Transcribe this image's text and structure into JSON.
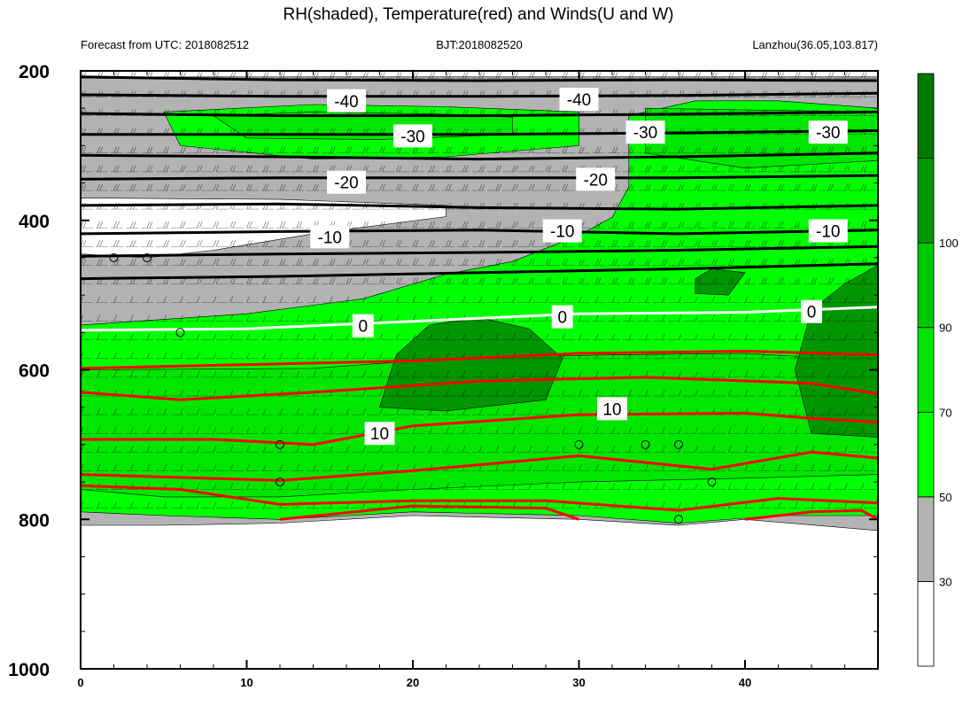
{
  "chart_data": {
    "type": "heatmap",
    "title": "RH(shaded), Temperature(red) and Winds(U and W)",
    "left_subtitle": "Forecast from UTC: 2018082512",
    "center_subtitle": "BJT:2018082520",
    "right_subtitle": "Lanzhou(36.05,103.817)",
    "x_range": [
      0,
      48
    ],
    "x_ticks": [
      0,
      10,
      20,
      30,
      40
    ],
    "y_range": [
      1000,
      200
    ],
    "y_ticks": [
      200,
      400,
      600,
      800,
      1000
    ],
    "colorbar": {
      "levels": [
        30,
        50,
        70,
        90,
        100
      ],
      "colors": [
        "#ffffff",
        "#b3b3b3",
        "#00ff00",
        "#00e600",
        "#00c800",
        "#009600",
        "#007800"
      ]
    },
    "rh_regions": [
      {
        "level": 50,
        "color": "#b3b3b3",
        "points": [
          [
            0,
            208
          ],
          [
            48,
            208
          ],
          [
            48,
            815
          ],
          [
            40,
            800
          ],
          [
            36,
            808
          ],
          [
            30,
            800
          ],
          [
            20,
            795
          ],
          [
            12,
            805
          ],
          [
            5,
            808
          ],
          [
            0,
            808
          ]
        ]
      },
      {
        "level": 30,
        "color": "#ffffff",
        "points": [
          [
            0,
            370
          ],
          [
            12,
            372
          ],
          [
            22,
            380
          ],
          [
            22,
            395
          ],
          [
            14,
            418
          ],
          [
            8,
            440
          ],
          [
            4,
            450
          ],
          [
            0,
            445
          ]
        ]
      },
      {
        "level": 70,
        "color": "#00ff00",
        "points": [
          [
            0,
            540
          ],
          [
            10,
            525
          ],
          [
            17,
            505
          ],
          [
            22,
            472
          ],
          [
            26,
            455
          ],
          [
            30,
            420
          ],
          [
            32,
            396
          ],
          [
            33,
            355
          ],
          [
            33,
            260
          ],
          [
            37,
            240
          ],
          [
            42,
            240
          ],
          [
            48,
            250
          ],
          [
            48,
            795
          ],
          [
            42,
            795
          ],
          [
            36,
            805
          ],
          [
            30,
            795
          ],
          [
            20,
            790
          ],
          [
            12,
            800
          ],
          [
            5,
            795
          ],
          [
            0,
            790
          ]
        ]
      },
      {
        "level": 70,
        "color": "#00ff00",
        "points": [
          [
            5,
            255
          ],
          [
            14,
            245
          ],
          [
            22,
            248
          ],
          [
            30,
            255
          ],
          [
            30,
            300
          ],
          [
            22,
            315
          ],
          [
            14,
            318
          ],
          [
            6,
            300
          ]
        ]
      },
      {
        "level": 90,
        "color": "#00e600",
        "points": [
          [
            0,
            600
          ],
          [
            14,
            598
          ],
          [
            22,
            585
          ],
          [
            32,
            580
          ],
          [
            40,
            578
          ],
          [
            48,
            588
          ],
          [
            48,
            740
          ],
          [
            40,
            745
          ],
          [
            30,
            750
          ],
          [
            20,
            760
          ],
          [
            12,
            770
          ],
          [
            5,
            770
          ],
          [
            0,
            760
          ]
        ]
      },
      {
        "level": 90,
        "color": "#00e600",
        "points": [
          [
            34,
            250
          ],
          [
            48,
            255
          ],
          [
            48,
            320
          ],
          [
            40,
            330
          ],
          [
            34,
            310
          ]
        ]
      },
      {
        "level": 90,
        "color": "#00e600",
        "points": [
          [
            8,
            260
          ],
          [
            14,
            255
          ],
          [
            22,
            258
          ],
          [
            26,
            262
          ],
          [
            26,
            285
          ],
          [
            18,
            292
          ],
          [
            10,
            290
          ]
        ]
      },
      {
        "level": 100,
        "color": "#009600",
        "points": [
          [
            19,
            580
          ],
          [
            21,
            540
          ],
          [
            24,
            530
          ],
          [
            27,
            545
          ],
          [
            29,
            585
          ],
          [
            28,
            640
          ],
          [
            22,
            655
          ],
          [
            18,
            650
          ]
        ]
      },
      {
        "level": 100,
        "color": "#009600",
        "points": [
          [
            44,
            520
          ],
          [
            46,
            485
          ],
          [
            48,
            460
          ],
          [
            48,
            690
          ],
          [
            44,
            685
          ],
          [
            43,
            600
          ]
        ]
      },
      {
        "level": 100,
        "color": "#009600",
        "points": [
          [
            37,
            478
          ],
          [
            38,
            465
          ],
          [
            40,
            470
          ],
          [
            39,
            500
          ],
          [
            37,
            498
          ]
        ]
      }
    ],
    "temperature_contours": [
      {
        "value": -40,
        "color": "#000000",
        "points": [
          [
            0,
            208
          ],
          [
            12,
            212
          ],
          [
            24,
            213
          ],
          [
            36,
            212
          ],
          [
            48,
            213
          ]
        ]
      },
      {
        "value": -40,
        "color": "#000000",
        "points": [
          [
            0,
            232
          ],
          [
            12,
            234
          ],
          [
            24,
            234
          ],
          [
            36,
            233
          ],
          [
            48,
            230
          ]
        ]
      },
      {
        "value": -30,
        "color": "#000000",
        "points": [
          [
            0,
            257
          ],
          [
            12,
            260
          ],
          [
            24,
            260
          ],
          [
            36,
            258
          ],
          [
            48,
            255
          ]
        ]
      },
      {
        "value": -30,
        "color": "#000000",
        "points": [
          [
            0,
            285
          ],
          [
            12,
            285
          ],
          [
            24,
            285
          ],
          [
            36,
            283
          ],
          [
            48,
            280
          ]
        ]
      },
      {
        "value": -20,
        "color": "#000000",
        "points": [
          [
            0,
            313
          ],
          [
            12,
            315
          ],
          [
            24,
            318
          ],
          [
            36,
            315
          ],
          [
            48,
            310
          ]
        ]
      },
      {
        "value": -20,
        "color": "#000000",
        "points": [
          [
            0,
            345
          ],
          [
            12,
            343
          ],
          [
            24,
            343
          ],
          [
            36,
            343
          ],
          [
            48,
            340
          ]
        ]
      },
      {
        "value": -10,
        "color": "#000000",
        "points": [
          [
            0,
            380
          ],
          [
            12,
            378
          ],
          [
            24,
            383
          ],
          [
            36,
            385
          ],
          [
            48,
            380
          ]
        ]
      },
      {
        "value": -10,
        "color": "#000000",
        "points": [
          [
            0,
            418
          ],
          [
            12,
            415
          ],
          [
            24,
            413
          ],
          [
            36,
            418
          ],
          [
            48,
            413
          ]
        ]
      },
      {
        "value": -10,
        "color": "#000000",
        "points": [
          [
            0,
            448
          ],
          [
            12,
            445
          ],
          [
            24,
            443
          ],
          [
            36,
            440
          ],
          [
            48,
            435
          ]
        ]
      },
      {
        "value": -10,
        "color": "#000000",
        "points": [
          [
            0,
            478
          ],
          [
            12,
            475
          ],
          [
            24,
            470
          ],
          [
            36,
            465
          ],
          [
            48,
            458
          ]
        ]
      },
      {
        "value": 0,
        "color": "#ffffff",
        "points": [
          [
            0,
            547
          ],
          [
            10,
            545
          ],
          [
            20,
            535
          ],
          [
            30,
            525
          ],
          [
            40,
            523
          ],
          [
            48,
            516
          ]
        ]
      },
      {
        "value": 10,
        "color": "#ff0000",
        "points": [
          [
            0,
            598
          ],
          [
            10,
            593
          ],
          [
            20,
            588
          ],
          [
            30,
            578
          ],
          [
            40,
            575
          ],
          [
            48,
            580
          ]
        ]
      },
      {
        "value": 10,
        "color": "#ff0000",
        "points": [
          [
            0,
            630
          ],
          [
            6,
            640
          ],
          [
            14,
            630
          ],
          [
            24,
            615
          ],
          [
            34,
            610
          ],
          [
            44,
            618
          ],
          [
            48,
            632
          ]
        ]
      },
      {
        "value": 10,
        "color": "#ff0000",
        "points": [
          [
            0,
            693
          ],
          [
            8,
            693
          ],
          [
            14,
            700
          ],
          [
            20,
            675
          ],
          [
            30,
            660
          ],
          [
            40,
            658
          ],
          [
            44,
            665
          ],
          [
            48,
            670
          ]
        ]
      },
      {
        "value": 10,
        "color": "#ff0000",
        "points": [
          [
            0,
            740
          ],
          [
            12,
            748
          ],
          [
            20,
            735
          ],
          [
            30,
            715
          ],
          [
            38,
            733
          ],
          [
            44,
            710
          ],
          [
            48,
            718
          ]
        ]
      },
      {
        "value": 10,
        "color": "#ff0000",
        "points": [
          [
            0,
            755
          ],
          [
            6,
            760
          ],
          [
            12,
            780
          ],
          [
            20,
            775
          ],
          [
            28,
            775
          ],
          [
            36,
            788
          ],
          [
            42,
            772
          ],
          [
            48,
            778
          ]
        ]
      },
      {
        "value": 10,
        "color": "#ff0000",
        "points": [
          [
            12,
            800
          ],
          [
            20,
            782
          ],
          [
            28,
            785
          ],
          [
            30,
            800
          ]
        ]
      },
      {
        "value": 10,
        "color": "#ff0000",
        "points": [
          [
            40,
            800
          ],
          [
            44,
            790
          ],
          [
            47,
            788
          ],
          [
            48,
            800
          ]
        ]
      }
    ],
    "contour_labels": [
      {
        "text": "-40",
        "x": 16,
        "y": 240
      },
      {
        "text": "-40",
        "x": 30,
        "y": 238
      },
      {
        "text": "-30",
        "x": 20,
        "y": 287
      },
      {
        "text": "-30",
        "x": 34,
        "y": 282
      },
      {
        "text": "-30",
        "x": 45,
        "y": 282
      },
      {
        "text": "-20",
        "x": 16,
        "y": 349
      },
      {
        "text": "-20",
        "x": 31,
        "y": 345
      },
      {
        "text": "-10",
        "x": 15,
        "y": 422
      },
      {
        "text": "-10",
        "x": 29,
        "y": 414
      },
      {
        "text": "-10",
        "x": 45,
        "y": 414
      },
      {
        "text": "0",
        "x": 17,
        "y": 541
      },
      {
        "text": "0",
        "x": 29,
        "y": 529
      },
      {
        "text": "0",
        "x": 44,
        "y": 522
      },
      {
        "text": "10",
        "x": 18,
        "y": 685
      },
      {
        "text": "10",
        "x": 32,
        "y": 652
      }
    ],
    "calm_markers": [
      [
        2,
        450
      ],
      [
        4,
        450
      ],
      [
        6,
        550
      ],
      [
        12,
        700
      ],
      [
        12,
        750
      ],
      [
        30,
        700
      ],
      [
        34,
        700
      ],
      [
        36,
        700
      ],
      [
        36,
        800
      ],
      [
        38,
        750
      ]
    ]
  }
}
